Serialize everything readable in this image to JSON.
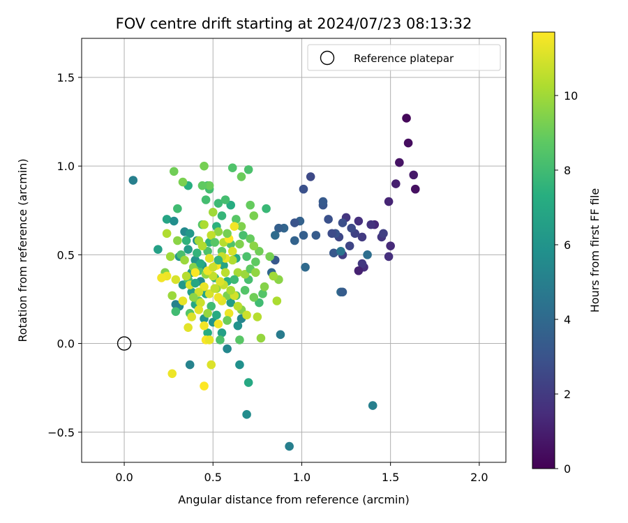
{
  "chart_data": {
    "type": "scatter",
    "title": "FOV centre drift starting at 2024/07/23 08:13:32",
    "xlabel": "Angular distance from reference (arcmin)",
    "ylabel": "Rotation from reference (arcmin)",
    "xlim": [
      -0.24,
      2.15
    ],
    "ylim": [
      -0.67,
      1.72
    ],
    "xticks": [
      0.0,
      0.5,
      1.0,
      1.5,
      2.0
    ],
    "xtick_labels": [
      "0.0",
      "0.5",
      "1.0",
      "1.5",
      "2.0"
    ],
    "yticks": [
      -0.5,
      0.0,
      0.5,
      1.0,
      1.5
    ],
    "ytick_labels": [
      "−0.5",
      "0.0",
      "0.5",
      "1.0",
      "1.5"
    ],
    "grid": true,
    "legend": {
      "placement": "top-right",
      "label": "Reference platepar",
      "marker": "open-circle"
    },
    "reference_point": {
      "x": 0.0,
      "y": 0.0
    },
    "colorbar": {
      "label": "Hours from first FF file",
      "colormap": "viridis",
      "range": [
        0,
        11.7
      ],
      "ticks": [
        0,
        2,
        4,
        6,
        8,
        10
      ],
      "tick_labels": [
        "0",
        "2",
        "4",
        "6",
        "8",
        "10"
      ]
    },
    "points": [
      {
        "x": 1.59,
        "y": 1.27,
        "t": 0.2
      },
      {
        "x": 1.6,
        "y": 1.13,
        "t": 0.4
      },
      {
        "x": 1.55,
        "y": 1.02,
        "t": 0.6
      },
      {
        "x": 1.63,
        "y": 0.95,
        "t": 0.8
      },
      {
        "x": 1.64,
        "y": 0.87,
        "t": 0.5
      },
      {
        "x": 1.53,
        "y": 0.9,
        "t": 1.0
      },
      {
        "x": 1.49,
        "y": 0.8,
        "t": 1.2
      },
      {
        "x": 1.5,
        "y": 0.55,
        "t": 1.4
      },
      {
        "x": 1.49,
        "y": 0.49,
        "t": 1.6
      },
      {
        "x": 1.45,
        "y": 0.6,
        "t": 1.8
      },
      {
        "x": 1.46,
        "y": 0.62,
        "t": 2.2
      },
      {
        "x": 1.41,
        "y": 0.67,
        "t": 1.3
      },
      {
        "x": 1.39,
        "y": 0.67,
        "t": 1.7
      },
      {
        "x": 1.35,
        "y": 0.43,
        "t": 1.5
      },
      {
        "x": 1.34,
        "y": 0.45,
        "t": 1.9
      },
      {
        "x": 1.32,
        "y": 0.41,
        "t": 1.1
      },
      {
        "x": 1.34,
        "y": 0.6,
        "t": 2.0
      },
      {
        "x": 1.32,
        "y": 0.69,
        "t": 1.6
      },
      {
        "x": 1.3,
        "y": 0.62,
        "t": 2.3
      },
      {
        "x": 1.28,
        "y": 0.65,
        "t": 2.6
      },
      {
        "x": 1.27,
        "y": 0.55,
        "t": 2.4
      },
      {
        "x": 1.25,
        "y": 0.71,
        "t": 1.8
      },
      {
        "x": 1.23,
        "y": 0.5,
        "t": 2.1
      },
      {
        "x": 1.23,
        "y": 0.68,
        "t": 2.8
      },
      {
        "x": 1.21,
        "y": 0.6,
        "t": 2.5
      },
      {
        "x": 1.19,
        "y": 0.62,
        "t": 3.0
      },
      {
        "x": 1.18,
        "y": 0.51,
        "t": 3.2
      },
      {
        "x": 1.17,
        "y": 0.62,
        "t": 2.7
      },
      {
        "x": 1.15,
        "y": 0.7,
        "t": 2.9
      },
      {
        "x": 1.12,
        "y": 0.78,
        "t": 3.1
      },
      {
        "x": 1.12,
        "y": 0.8,
        "t": 3.3
      },
      {
        "x": 1.08,
        "y": 0.61,
        "t": 3.4
      },
      {
        "x": 1.05,
        "y": 0.94,
        "t": 2.6
      },
      {
        "x": 1.01,
        "y": 0.87,
        "t": 2.9
      },
      {
        "x": 1.01,
        "y": 0.61,
        "t": 3.5
      },
      {
        "x": 0.99,
        "y": 0.69,
        "t": 3.6
      },
      {
        "x": 0.96,
        "y": 0.68,
        "t": 3.0
      },
      {
        "x": 0.96,
        "y": 0.58,
        "t": 3.7
      },
      {
        "x": 1.02,
        "y": 0.43,
        "t": 4.0
      },
      {
        "x": 0.9,
        "y": 0.65,
        "t": 3.8
      },
      {
        "x": 0.87,
        "y": 0.65,
        "t": 3.5
      },
      {
        "x": 0.85,
        "y": 0.47,
        "t": 3.2
      },
      {
        "x": 0.83,
        "y": 0.4,
        "t": 3.9
      },
      {
        "x": 0.85,
        "y": 0.61,
        "t": 4.1
      },
      {
        "x": 1.37,
        "y": 0.5,
        "t": 4.2
      },
      {
        "x": 1.22,
        "y": 0.29,
        "t": 4.0
      },
      {
        "x": 1.23,
        "y": 0.29,
        "t": 3.4
      },
      {
        "x": 1.22,
        "y": 0.52,
        "t": 4.5
      },
      {
        "x": 1.4,
        "y": -0.35,
        "t": 5.0
      },
      {
        "x": 0.93,
        "y": -0.58,
        "t": 5.0
      },
      {
        "x": 0.88,
        "y": 0.05,
        "t": 4.8
      },
      {
        "x": 0.69,
        "y": -0.4,
        "t": 5.6
      },
      {
        "x": 0.65,
        "y": -0.12,
        "t": 5.8
      },
      {
        "x": 0.37,
        "y": -0.12,
        "t": 5.2
      },
      {
        "x": 0.58,
        "y": -0.03,
        "t": 5.4
      },
      {
        "x": 0.05,
        "y": 0.92,
        "t": 5.0
      },
      {
        "x": 0.7,
        "y": -0.22,
        "t": 7.0
      },
      {
        "x": 0.64,
        "y": 0.1,
        "t": 5.9
      },
      {
        "x": 0.66,
        "y": 0.14,
        "t": 5.3
      },
      {
        "x": 0.31,
        "y": 0.21,
        "t": 5.6
      },
      {
        "x": 0.29,
        "y": 0.22,
        "t": 5.1
      },
      {
        "x": 0.19,
        "y": 0.53,
        "t": 6.6
      },
      {
        "x": 0.24,
        "y": 0.7,
        "t": 6.8
      },
      {
        "x": 0.28,
        "y": 0.69,
        "t": 5.7
      },
      {
        "x": 0.34,
        "y": 0.63,
        "t": 5.5
      },
      {
        "x": 0.37,
        "y": 0.62,
        "t": 6.2
      },
      {
        "x": 0.41,
        "y": 0.58,
        "t": 5.8
      },
      {
        "x": 0.31,
        "y": 0.49,
        "t": 6.1
      },
      {
        "x": 0.36,
        "y": 0.53,
        "t": 6.4
      },
      {
        "x": 0.4,
        "y": 0.47,
        "t": 6.0
      },
      {
        "x": 0.44,
        "y": 0.44,
        "t": 5.9
      },
      {
        "x": 0.38,
        "y": 0.4,
        "t": 6.3
      },
      {
        "x": 0.33,
        "y": 0.33,
        "t": 6.2
      },
      {
        "x": 0.38,
        "y": 0.29,
        "t": 6.5
      },
      {
        "x": 0.43,
        "y": 0.35,
        "t": 5.6
      },
      {
        "x": 0.46,
        "y": 0.28,
        "t": 6.7
      },
      {
        "x": 0.4,
        "y": 0.22,
        "t": 6.9
      },
      {
        "x": 0.45,
        "y": 0.14,
        "t": 6.1
      },
      {
        "x": 0.5,
        "y": 0.12,
        "t": 6.0
      },
      {
        "x": 0.52,
        "y": 0.16,
        "t": 7.1
      },
      {
        "x": 0.47,
        "y": 0.06,
        "t": 7.2
      },
      {
        "x": 0.55,
        "y": 0.06,
        "t": 6.6
      },
      {
        "x": 0.6,
        "y": 0.23,
        "t": 6.4
      },
      {
        "x": 0.56,
        "y": 0.44,
        "t": 6.8
      },
      {
        "x": 0.63,
        "y": 0.48,
        "t": 7.0
      },
      {
        "x": 0.58,
        "y": 0.35,
        "t": 7.3
      },
      {
        "x": 0.51,
        "y": 0.37,
        "t": 7.5
      },
      {
        "x": 0.48,
        "y": 0.57,
        "t": 7.6
      },
      {
        "x": 0.52,
        "y": 0.66,
        "t": 7.4
      },
      {
        "x": 0.55,
        "y": 0.72,
        "t": 7.7
      },
      {
        "x": 0.6,
        "y": 0.78,
        "t": 7.2
      },
      {
        "x": 0.53,
        "y": 0.79,
        "t": 7.9
      },
      {
        "x": 0.48,
        "y": 0.87,
        "t": 8.1
      },
      {
        "x": 0.47,
        "y": 0.89,
        "t": 7.8
      },
      {
        "x": 0.36,
        "y": 0.89,
        "t": 7.3
      },
      {
        "x": 0.3,
        "y": 0.76,
        "t": 8.0
      },
      {
        "x": 0.35,
        "y": 0.58,
        "t": 7.5
      },
      {
        "x": 0.32,
        "y": 0.5,
        "t": 8.2
      },
      {
        "x": 0.41,
        "y": 0.51,
        "t": 7.6
      },
      {
        "x": 0.42,
        "y": 0.41,
        "t": 8.4
      },
      {
        "x": 0.36,
        "y": 0.36,
        "t": 8.1
      },
      {
        "x": 0.29,
        "y": 0.18,
        "t": 8.0
      },
      {
        "x": 0.37,
        "y": 0.17,
        "t": 8.5
      },
      {
        "x": 0.42,
        "y": 0.24,
        "t": 8.7
      },
      {
        "x": 0.49,
        "y": 0.21,
        "t": 8.0
      },
      {
        "x": 0.54,
        "y": 0.02,
        "t": 8.3
      },
      {
        "x": 0.65,
        "y": 0.02,
        "t": 8.6
      },
      {
        "x": 0.63,
        "y": 0.27,
        "t": 8.4
      },
      {
        "x": 0.7,
        "y": 0.36,
        "t": 8.2
      },
      {
        "x": 0.76,
        "y": 0.23,
        "t": 8.0
      },
      {
        "x": 0.78,
        "y": 0.28,
        "t": 8.5
      },
      {
        "x": 0.74,
        "y": 0.46,
        "t": 8.8
      },
      {
        "x": 0.8,
        "y": 0.76,
        "t": 7.8
      },
      {
        "x": 0.7,
        "y": 0.98,
        "t": 8.3
      },
      {
        "x": 0.61,
        "y": 0.99,
        "t": 8.4
      },
      {
        "x": 0.57,
        "y": 0.81,
        "t": 8.1
      },
      {
        "x": 0.63,
        "y": 0.7,
        "t": 8.6
      },
      {
        "x": 0.67,
        "y": 0.61,
        "t": 8.2
      },
      {
        "x": 0.71,
        "y": 0.59,
        "t": 8.9
      },
      {
        "x": 0.6,
        "y": 0.56,
        "t": 8.4
      },
      {
        "x": 0.55,
        "y": 0.52,
        "t": 8.7
      },
      {
        "x": 0.47,
        "y": 0.52,
        "t": 8.3
      },
      {
        "x": 0.44,
        "y": 0.67,
        "t": 8.5
      },
      {
        "x": 0.46,
        "y": 0.81,
        "t": 8.1
      },
      {
        "x": 0.48,
        "y": 0.89,
        "t": 9.0
      },
      {
        "x": 0.44,
        "y": 0.89,
        "t": 8.8
      },
      {
        "x": 0.28,
        "y": 0.97,
        "t": 9.1
      },
      {
        "x": 0.33,
        "y": 0.91,
        "t": 9.3
      },
      {
        "x": 0.45,
        "y": 1.0,
        "t": 9.2
      },
      {
        "x": 0.66,
        "y": 0.94,
        "t": 9.0
      },
      {
        "x": 0.71,
        "y": 0.78,
        "t": 8.9
      },
      {
        "x": 0.73,
        "y": 0.72,
        "t": 9.3
      },
      {
        "x": 0.66,
        "y": 0.66,
        "t": 9.4
      },
      {
        "x": 0.76,
        "y": 0.52,
        "t": 9.1
      },
      {
        "x": 0.82,
        "y": 0.49,
        "t": 9.2
      },
      {
        "x": 0.87,
        "y": 0.36,
        "t": 9.6
      },
      {
        "x": 0.79,
        "y": 0.32,
        "t": 9.5
      },
      {
        "x": 0.73,
        "y": 0.26,
        "t": 9.1
      },
      {
        "x": 0.77,
        "y": 0.03,
        "t": 9.8
      },
      {
        "x": 0.66,
        "y": 0.19,
        "t": 9.5
      },
      {
        "x": 0.58,
        "y": 0.27,
        "t": 9.3
      },
      {
        "x": 0.52,
        "y": 0.31,
        "t": 9.7
      },
      {
        "x": 0.46,
        "y": 0.39,
        "t": 9.8
      },
      {
        "x": 0.39,
        "y": 0.43,
        "t": 9.5
      },
      {
        "x": 0.34,
        "y": 0.47,
        "t": 9.9
      },
      {
        "x": 0.3,
        "y": 0.58,
        "t": 9.6
      },
      {
        "x": 0.26,
        "y": 0.49,
        "t": 10.0
      },
      {
        "x": 0.23,
        "y": 0.4,
        "t": 9.4
      },
      {
        "x": 0.27,
        "y": 0.27,
        "t": 9.9
      },
      {
        "x": 0.24,
        "y": 0.62,
        "t": 10.3
      },
      {
        "x": 0.42,
        "y": 0.58,
        "t": 10.1
      },
      {
        "x": 0.45,
        "y": 0.67,
        "t": 10.2
      },
      {
        "x": 0.5,
        "y": 0.74,
        "t": 10.0
      },
      {
        "x": 0.53,
        "y": 0.63,
        "t": 9.7
      },
      {
        "x": 0.56,
        "y": 0.57,
        "t": 10.4
      },
      {
        "x": 0.61,
        "y": 0.47,
        "t": 10.3
      },
      {
        "x": 0.64,
        "y": 0.4,
        "t": 10.1
      },
      {
        "x": 0.68,
        "y": 0.39,
        "t": 9.9
      },
      {
        "x": 0.73,
        "y": 0.55,
        "t": 9.6
      },
      {
        "x": 0.84,
        "y": 0.38,
        "t": 10.0
      },
      {
        "x": 0.86,
        "y": 0.24,
        "t": 10.2
      },
      {
        "x": 0.75,
        "y": 0.15,
        "t": 10.4
      },
      {
        "x": 0.69,
        "y": 0.16,
        "t": 10.8
      },
      {
        "x": 0.64,
        "y": 0.21,
        "t": 10.5
      },
      {
        "x": 0.62,
        "y": 0.27,
        "t": 10.9
      },
      {
        "x": 0.56,
        "y": 0.33,
        "t": 10.7
      },
      {
        "x": 0.5,
        "y": 0.38,
        "t": 10.6
      },
      {
        "x": 0.48,
        "y": 0.28,
        "t": 11.0
      },
      {
        "x": 0.43,
        "y": 0.23,
        "t": 10.8
      },
      {
        "x": 0.42,
        "y": 0.19,
        "t": 11.2
      },
      {
        "x": 0.38,
        "y": 0.15,
        "t": 11.1
      },
      {
        "x": 0.33,
        "y": 0.24,
        "t": 11.3
      },
      {
        "x": 0.29,
        "y": 0.36,
        "t": 11.0
      },
      {
        "x": 0.24,
        "y": 0.38,
        "t": 11.4
      },
      {
        "x": 0.21,
        "y": 0.37,
        "t": 11.5
      },
      {
        "x": 0.36,
        "y": 0.09,
        "t": 11.2
      },
      {
        "x": 0.45,
        "y": 0.1,
        "t": 11.5
      },
      {
        "x": 0.46,
        "y": 0.02,
        "t": 11.6
      },
      {
        "x": 0.48,
        "y": 0.02,
        "t": 11.3
      },
      {
        "x": 0.49,
        "y": -0.12,
        "t": 11.1
      },
      {
        "x": 0.27,
        "y": -0.17,
        "t": 11.4
      },
      {
        "x": 0.45,
        "y": -0.24,
        "t": 11.7
      },
      {
        "x": 0.53,
        "y": 0.11,
        "t": 11.5
      },
      {
        "x": 0.59,
        "y": 0.17,
        "t": 11.4
      },
      {
        "x": 0.55,
        "y": 0.24,
        "t": 11.2
      },
      {
        "x": 0.52,
        "y": 0.44,
        "t": 11.6
      },
      {
        "x": 0.57,
        "y": 0.48,
        "t": 11.3
      },
      {
        "x": 0.61,
        "y": 0.52,
        "t": 11.0
      },
      {
        "x": 0.59,
        "y": 0.59,
        "t": 11.7
      },
      {
        "x": 0.62,
        "y": 0.66,
        "t": 11.5
      },
      {
        "x": 0.48,
        "y": 0.48,
        "t": 11.2
      },
      {
        "x": 0.47,
        "y": 0.41,
        "t": 11.4
      },
      {
        "x": 0.4,
        "y": 0.4,
        "t": 11.6
      },
      {
        "x": 0.37,
        "y": 0.33,
        "t": 11.0
      },
      {
        "x": 0.45,
        "y": 0.32,
        "t": 11.3
      },
      {
        "x": 0.42,
        "y": 0.29,
        "t": 10.9
      },
      {
        "x": 0.51,
        "y": 0.31,
        "t": 10.6
      },
      {
        "x": 0.54,
        "y": 0.35,
        "t": 11.1
      },
      {
        "x": 0.53,
        "y": 0.26,
        "t": 11.4
      },
      {
        "x": 0.5,
        "y": 0.43,
        "t": 10.8
      },
      {
        "x": 0.57,
        "y": 0.4,
        "t": 10.5
      },
      {
        "x": 0.55,
        "y": 0.49,
        "t": 10.7
      },
      {
        "x": 0.44,
        "y": 0.55,
        "t": 10.3
      },
      {
        "x": 0.49,
        "y": 0.61,
        "t": 10.6
      },
      {
        "x": 0.6,
        "y": 0.3,
        "t": 10.2
      },
      {
        "x": 0.35,
        "y": 0.38,
        "t": 10.4
      },
      {
        "x": 0.39,
        "y": 0.26,
        "t": 9.6
      },
      {
        "x": 0.47,
        "y": 0.17,
        "t": 9.8
      },
      {
        "x": 0.58,
        "y": 0.13,
        "t": 9.0
      },
      {
        "x": 0.68,
        "y": 0.3,
        "t": 8.5
      },
      {
        "x": 0.71,
        "y": 0.42,
        "t": 8.8
      },
      {
        "x": 0.62,
        "y": 0.36,
        "t": 7.9
      },
      {
        "x": 0.53,
        "y": 0.47,
        "t": 7.6
      },
      {
        "x": 0.43,
        "y": 0.45,
        "t": 7.1
      },
      {
        "x": 0.4,
        "y": 0.34,
        "t": 6.9
      },
      {
        "x": 0.51,
        "y": 0.57,
        "t": 8.6
      },
      {
        "x": 0.58,
        "y": 0.62,
        "t": 9.2
      },
      {
        "x": 0.65,
        "y": 0.56,
        "t": 9.4
      },
      {
        "x": 0.69,
        "y": 0.49,
        "t": 8.3
      },
      {
        "x": 0.74,
        "y": 0.4,
        "t": 9.7
      }
    ]
  }
}
